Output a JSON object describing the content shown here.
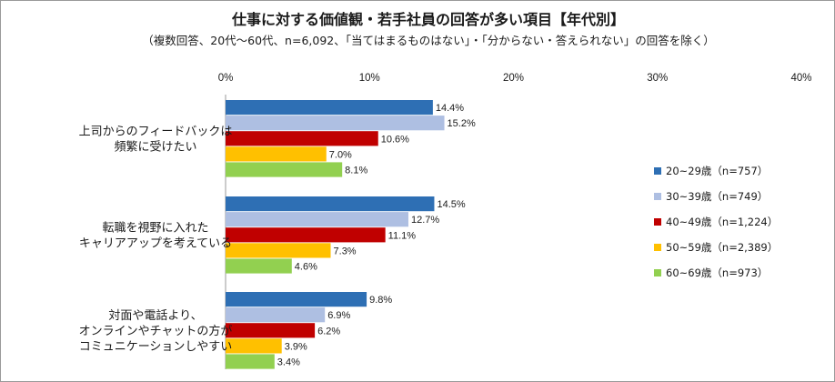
{
  "chart_data": {
    "type": "bar",
    "orientation": "horizontal",
    "title": "仕事に対する価値観・若手社員の回答が多い項目【年代別】",
    "subtitle": "（複数回答、20代～60代、n=6,092、「当てはまるものはない」・「分からない・答えられない」の回答を除く）",
    "xlim": [
      0,
      40
    ],
    "ticks": [
      "0%",
      "10%",
      "20%",
      "30%",
      "40%"
    ],
    "tick_values": [
      0,
      10,
      20,
      30,
      40
    ],
    "value_suffix": "%",
    "grid": false,
    "legend_position": "right",
    "categories": [
      [
        "上司からのフィードバックは",
        "頻繁に受けたい"
      ],
      [
        "転職を視野に入れた",
        "キャリアアップを考えている"
      ],
      [
        "対面や電話より、",
        "オンラインやチャットの方が",
        "コミュニケーションしやすい"
      ]
    ],
    "series": [
      {
        "name": "20~29歳（n=757）",
        "color": "#2e6fb4",
        "values": [
          14.4,
          14.5,
          9.8
        ]
      },
      {
        "name": "30~39歳（n=749）",
        "color": "#aebfe2",
        "values": [
          15.2,
          12.7,
          6.9
        ]
      },
      {
        "name": "40~49歳（n=1,224）",
        "color": "#c00000",
        "values": [
          10.6,
          11.1,
          6.2
        ]
      },
      {
        "name": "50~59歳（n=2,389）",
        "color": "#ffc000",
        "values": [
          7.0,
          7.3,
          3.9
        ]
      },
      {
        "name": "60~69歳（n=973）",
        "color": "#92d050",
        "values": [
          8.1,
          4.6,
          3.4
        ]
      }
    ]
  }
}
